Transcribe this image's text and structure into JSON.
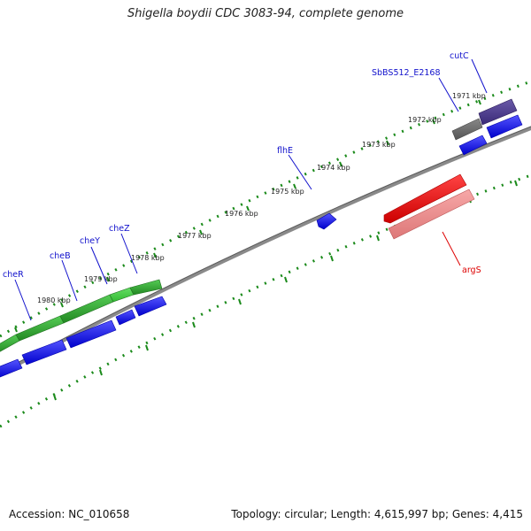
{
  "title": "Shigella boydii CDC 3083-94, complete genome",
  "footer": {
    "accession": "Accession: NC_010658",
    "summary": "Topology: circular; Length: 4,615,997 bp; Genes: 4,415"
  },
  "colors": {
    "backbone": "#8a8a8a",
    "tick": "#1a8a1a",
    "cds": "#0000ee",
    "gene_green": "#33aa33",
    "gene_gray": "#777777",
    "gene_purple": "#4a3a88",
    "gene_red": "#ee1111",
    "gene_pink": "#ee8888",
    "label_blue": "#1111cc",
    "label_red": "#dd0000"
  },
  "scale_labels": [
    "1971 kbp",
    "1972 kbp",
    "1973 kbp",
    "1974 kbp",
    "1975 kbp",
    "1976 kbp",
    "1977 kbp",
    "1978 kbp",
    "1979 kbp",
    "1980 kbp"
  ],
  "gene_labels": [
    "cutC",
    "SbBS512_E2168",
    "flhE",
    "cheZ",
    "cheY",
    "cheB",
    "cheR",
    "argS"
  ]
}
